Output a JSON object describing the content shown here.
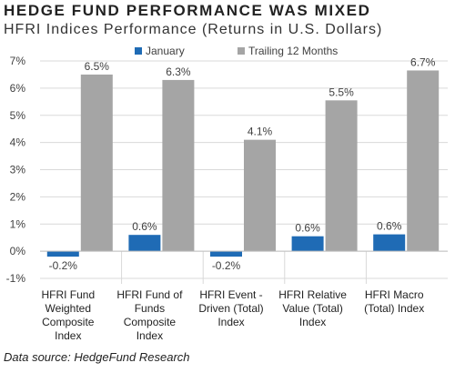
{
  "header": {
    "title": "HEDGE FUND PERFORMANCE WAS MIXED",
    "subtitle": "HFRI Indices Performance (Returns in U.S. Dollars)"
  },
  "footer": {
    "source": "Data source: HedgeFund Research"
  },
  "colors": {
    "january": "#1f6bb5",
    "trailing": "#a5a5a5",
    "grid": "#d9d9d9"
  },
  "chart_data": {
    "type": "bar",
    "categories": [
      [
        "HFRI Fund",
        "Weighted",
        "Composite",
        "Index"
      ],
      [
        "HFRI Fund of",
        "Funds",
        "Composite",
        "Index"
      ],
      [
        "HFRI Event -",
        "Driven (Total)",
        "Index"
      ],
      [
        "HFRI Relative",
        "Value (Total)",
        "Index"
      ],
      [
        "HFRI Macro",
        "(Total) Index"
      ]
    ],
    "series": [
      {
        "name": "January",
        "values": [
          -0.2,
          0.6,
          -0.2,
          0.55,
          0.62
        ],
        "labels": [
          "-0.2%",
          "0.6%",
          "-0.2%",
          "0.6%",
          "0.6%"
        ]
      },
      {
        "name": "Trailing 12 Months",
        "values": [
          6.5,
          6.3,
          4.1,
          5.55,
          6.65
        ],
        "labels": [
          "6.5%",
          "6.3%",
          "4.1%",
          "5.5%",
          "6.7%"
        ]
      }
    ],
    "ylim": [
      -1,
      7
    ],
    "yticks": [
      7,
      6,
      5,
      4,
      3,
      2,
      1,
      0,
      -1
    ],
    "ytick_labels": [
      "7%",
      "6%",
      "5%",
      "4%",
      "3%",
      "2%",
      "1%",
      "0%",
      "-1%"
    ],
    "grid": true,
    "legend": "top-center"
  }
}
